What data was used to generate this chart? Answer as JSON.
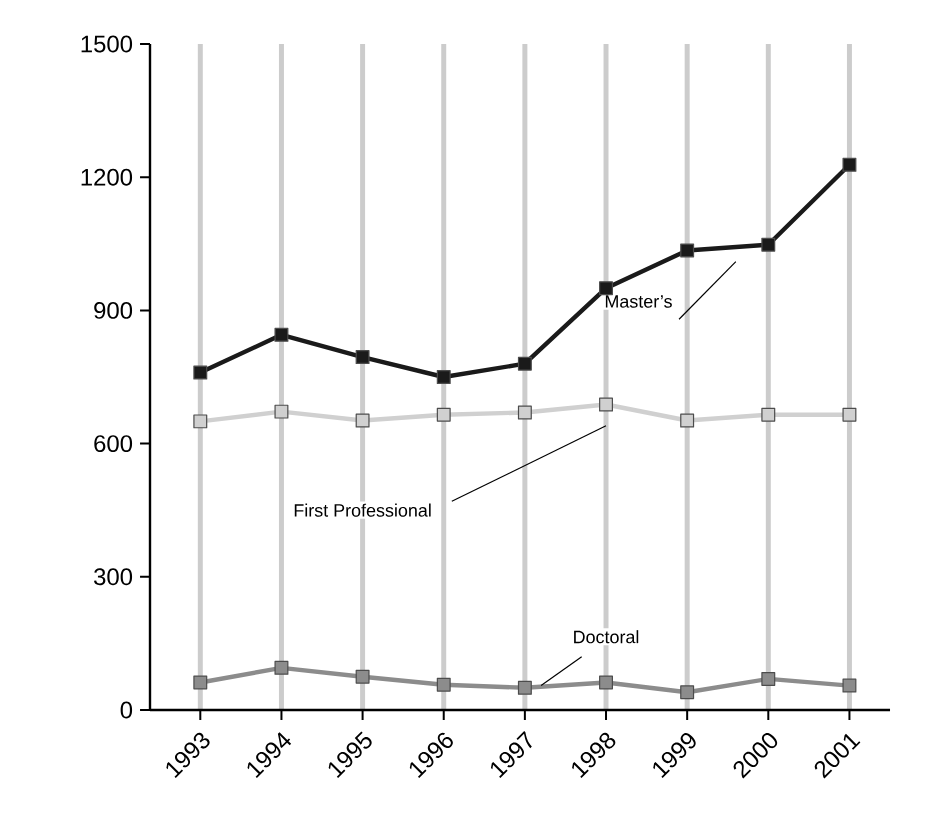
{
  "chart_data": {
    "type": "line",
    "categories": [
      "1993",
      "1994",
      "1995",
      "1996",
      "1997",
      "1998",
      "1999",
      "2000",
      "2001"
    ],
    "series": [
      {
        "name": "Master’s",
        "color": "#1a1a1a",
        "values": [
          760,
          845,
          795,
          750,
          780,
          950,
          1035,
          1048,
          1228
        ]
      },
      {
        "name": "First Professional",
        "color": "#d0d0d0",
        "values": [
          650,
          672,
          652,
          665,
          670,
          688,
          652,
          665,
          665
        ]
      },
      {
        "name": "Doctoral",
        "color": "#8c8c8c",
        "values": [
          62,
          95,
          75,
          57,
          50,
          62,
          40,
          70,
          55
        ]
      }
    ],
    "ylim": [
      0,
      1500
    ],
    "yticks": [
      0,
      300,
      600,
      900,
      1200,
      1500
    ],
    "grid": "x",
    "marker": "square",
    "line_style": "solid",
    "legend": false
  }
}
